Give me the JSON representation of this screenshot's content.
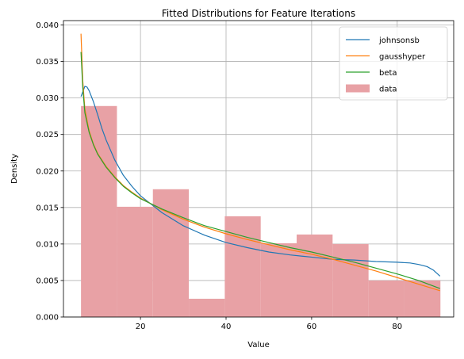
{
  "chart_data": {
    "type": "histogram+line",
    "title": "Fitted Distributions for Feature Iterations",
    "xlabel": "Value",
    "ylabel": "Density",
    "xlim": [
      2.0,
      93.2
    ],
    "ylim": [
      0.0,
      0.0406
    ],
    "xticks": [
      20,
      40,
      60,
      80
    ],
    "yticks": [
      0.0,
      0.005,
      0.01,
      0.015,
      0.02,
      0.025,
      0.03,
      0.035,
      0.04
    ],
    "ytick_labels": [
      "0.000",
      "0.005",
      "0.010",
      "0.015",
      "0.020",
      "0.025",
      "0.030",
      "0.035",
      "0.040"
    ],
    "grid": true,
    "legend_position": "upper right",
    "histogram": {
      "name": "data",
      "color": "#e8a1a5",
      "bins": [
        {
          "x0": 6.1,
          "x1": 14.5,
          "density": 0.0289
        },
        {
          "x0": 14.5,
          "x1": 22.9,
          "density": 0.0151
        },
        {
          "x0": 22.9,
          "x1": 31.3,
          "density": 0.0175
        },
        {
          "x0": 31.3,
          "x1": 39.7,
          "density": 0.0025
        },
        {
          "x0": 39.7,
          "x1": 48.1,
          "density": 0.0138
        },
        {
          "x0": 48.1,
          "x1": 56.5,
          "density": 0.0101
        },
        {
          "x0": 56.5,
          "x1": 64.9,
          "density": 0.0113
        },
        {
          "x0": 64.9,
          "x1": 73.3,
          "density": 0.01
        },
        {
          "x0": 73.3,
          "x1": 81.7,
          "density": 0.005
        },
        {
          "x0": 81.7,
          "x1": 90.1,
          "density": 0.005
        }
      ]
    },
    "series": [
      {
        "name": "johnsonsb",
        "color": "#1f77b4",
        "x": [
          6.1,
          6.5,
          7,
          7.5,
          8,
          9,
          10,
          11,
          12,
          14,
          16,
          18,
          20,
          25,
          30,
          35,
          40,
          45,
          50,
          55,
          60,
          65,
          70,
          75,
          80,
          83,
          85,
          87,
          88.5,
          90
        ],
        "y": [
          0.0302,
          0.0308,
          0.0316,
          0.0315,
          0.031,
          0.0295,
          0.0277,
          0.0258,
          0.0242,
          0.0215,
          0.0194,
          0.0179,
          0.0166,
          0.0143,
          0.0125,
          0.0112,
          0.0102,
          0.0095,
          0.0089,
          0.0085,
          0.0082,
          0.0079,
          0.0078,
          0.0076,
          0.0075,
          0.0074,
          0.0072,
          0.0069,
          0.0064,
          0.0056
        ]
      },
      {
        "name": "gausshyper",
        "color": "#ff7f0e",
        "x": [
          6.1,
          6.5,
          7,
          8,
          9,
          10,
          12,
          14,
          16,
          18,
          20,
          25,
          30,
          35,
          40,
          45,
          50,
          55,
          60,
          65,
          70,
          75,
          80,
          85,
          90
        ],
        "y": [
          0.0388,
          0.0325,
          0.0285,
          0.0255,
          0.0237,
          0.0224,
          0.0206,
          0.0192,
          0.018,
          0.0171,
          0.0163,
          0.0147,
          0.0134,
          0.0123,
          0.0114,
          0.0106,
          0.0099,
          0.0092,
          0.0086,
          0.0079,
          0.0071,
          0.0063,
          0.0054,
          0.0045,
          0.0036
        ]
      },
      {
        "name": "beta",
        "color": "#2ca02c",
        "x": [
          6.1,
          6.5,
          7,
          8,
          9,
          10,
          12,
          14,
          16,
          18,
          20,
          25,
          30,
          35,
          40,
          45,
          50,
          55,
          60,
          65,
          70,
          75,
          80,
          85,
          90
        ],
        "y": [
          0.0363,
          0.0315,
          0.028,
          0.0253,
          0.0236,
          0.0223,
          0.0205,
          0.0191,
          0.0179,
          0.017,
          0.0162,
          0.0148,
          0.0136,
          0.0125,
          0.0117,
          0.0109,
          0.0102,
          0.0095,
          0.0089,
          0.0082,
          0.0075,
          0.0067,
          0.0059,
          0.005,
          0.0039
        ]
      }
    ]
  }
}
